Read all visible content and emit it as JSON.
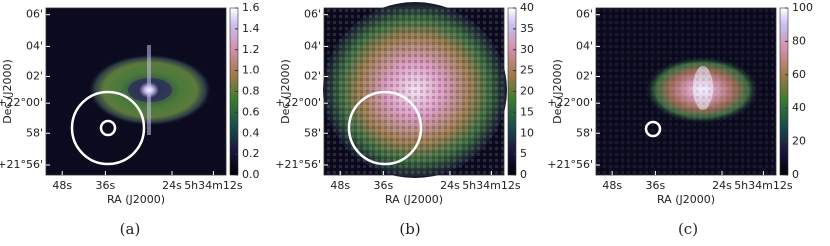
{
  "chart_data": [
    {
      "type": "image",
      "caption": "(a)",
      "xlabel": "RA (J2000)",
      "ylabel": "Dec (J2000)",
      "xticks": [
        "48s",
        "36s",
        "24s",
        "5h34m12s"
      ],
      "yticks": [
        "06'",
        "04'",
        "02'",
        "+22°00'",
        "58'",
        "+21°56'"
      ],
      "clim": [
        0,
        1.6
      ],
      "cticks": [
        {
          "value": 0,
          "label": "0.0"
        },
        0.2,
        0.4,
        0.6,
        0.8,
        {
          "value": 1,
          "label": "1.0"
        },
        1.2,
        1.4,
        1.6
      ]
    },
    {
      "type": "image",
      "caption": "(b)",
      "xlabel": "RA (J2000)",
      "ylabel": "Dec (J2000)",
      "xticks": [
        "48s",
        "36s",
        "24s",
        "5h34m12s"
      ],
      "yticks": [
        "06'",
        "04'",
        "02'",
        "+22°00'",
        "58'",
        "+21°56'"
      ],
      "clim": [
        0,
        40
      ],
      "cticks": [
        0,
        5,
        10,
        15,
        20,
        25,
        30,
        35,
        40
      ]
    },
    {
      "type": "image",
      "caption": "(c)",
      "xlabel": "RA (J2000)",
      "ylabel": "Dec (J2000)",
      "xticks": [
        "48s",
        "36s",
        "24s",
        "5h34m12s"
      ],
      "yticks": [
        "06'",
        "04'",
        "02'",
        "+22°00'",
        "58'",
        "+21°56'"
      ],
      "clim": [
        0,
        100
      ],
      "cticks": [
        0,
        20,
        40,
        60,
        80,
        100
      ]
    }
  ]
}
